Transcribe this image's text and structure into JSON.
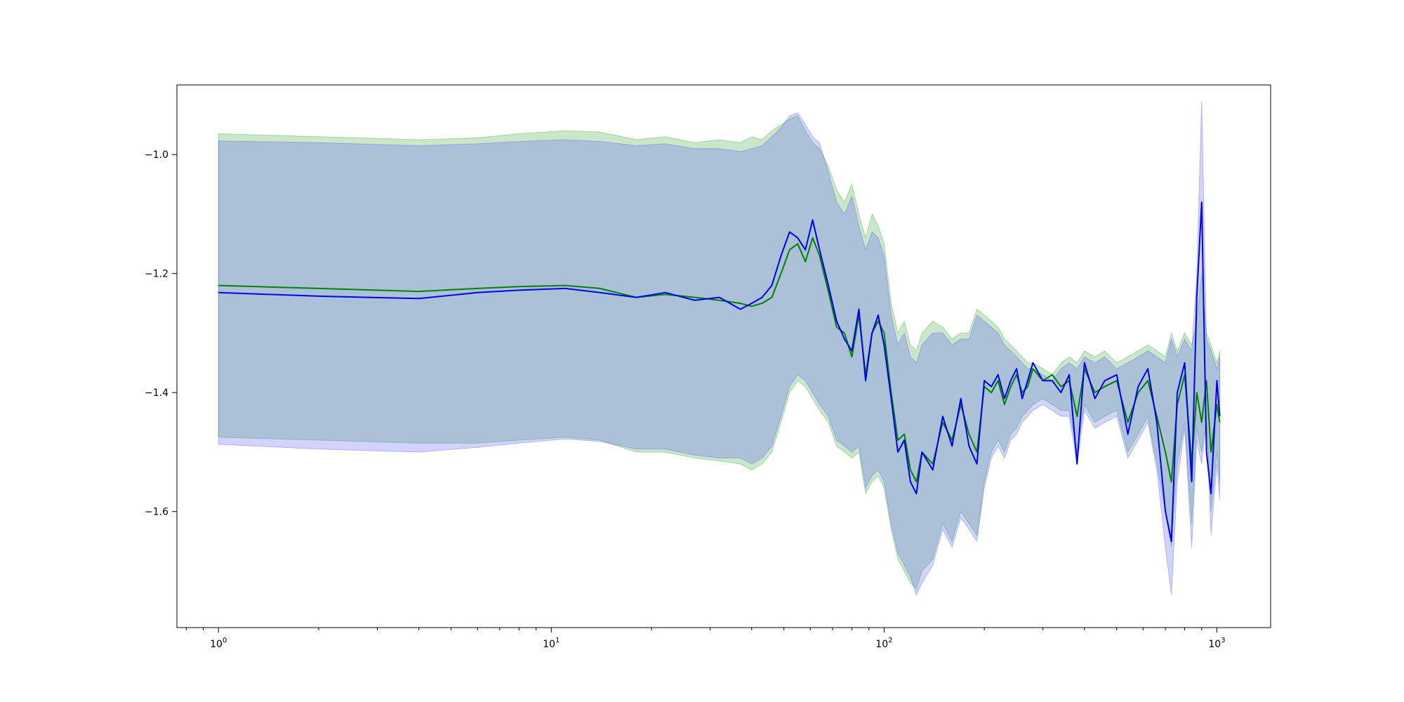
{
  "chart_data": {
    "type": "area",
    "x_scale": "log",
    "xlim": [
      0.75,
      1450
    ],
    "ylim": [
      -1.795,
      -0.883
    ],
    "grid": false,
    "legend": "none",
    "x_ticks": [
      {
        "value": 1,
        "label": "10",
        "exp": "0"
      },
      {
        "value": 10,
        "label": "10",
        "exp": "1"
      },
      {
        "value": 100,
        "label": "10",
        "exp": "2"
      },
      {
        "value": 1000,
        "label": "10",
        "exp": "3"
      }
    ],
    "y_ticks": [
      {
        "value": -1.0,
        "label": "−1.0"
      },
      {
        "value": -1.2,
        "label": "−1.2"
      },
      {
        "value": -1.4,
        "label": "−1.4"
      },
      {
        "value": -1.6,
        "label": "−1.6"
      }
    ],
    "series": [
      {
        "color": "#008000",
        "band_color": "#2ca02c",
        "x": [
          1,
          2,
          4,
          6,
          8,
          11,
          14,
          18,
          22,
          27,
          32,
          37,
          40,
          43,
          46,
          49,
          52,
          55,
          58,
          61,
          64,
          68,
          72,
          76,
          80,
          84,
          88,
          92,
          96,
          100,
          105,
          110,
          115,
          120,
          125,
          130,
          140,
          150,
          160,
          170,
          180,
          190,
          200,
          210,
          220,
          230,
          240,
          250,
          260,
          270,
          280,
          300,
          320,
          340,
          360,
          380,
          400,
          430,
          460,
          500,
          540,
          580,
          620,
          660,
          700,
          730,
          760,
          800,
          840,
          870,
          900,
          930,
          960,
          1000,
          1020
        ],
        "mean": [
          -1.22,
          -1.225,
          -1.23,
          -1.225,
          -1.222,
          -1.22,
          -1.225,
          -1.24,
          -1.235,
          -1.24,
          -1.245,
          -1.25,
          -1.255,
          -1.25,
          -1.24,
          -1.2,
          -1.16,
          -1.15,
          -1.18,
          -1.14,
          -1.17,
          -1.23,
          -1.29,
          -1.3,
          -1.34,
          -1.27,
          -1.37,
          -1.3,
          -1.28,
          -1.3,
          -1.4,
          -1.48,
          -1.47,
          -1.53,
          -1.55,
          -1.5,
          -1.52,
          -1.45,
          -1.48,
          -1.42,
          -1.47,
          -1.5,
          -1.39,
          -1.4,
          -1.38,
          -1.42,
          -1.39,
          -1.37,
          -1.4,
          -1.39,
          -1.36,
          -1.38,
          -1.37,
          -1.39,
          -1.38,
          -1.44,
          -1.36,
          -1.4,
          -1.39,
          -1.38,
          -1.45,
          -1.4,
          -1.38,
          -1.44,
          -1.5,
          -1.55,
          -1.42,
          -1.37,
          -1.52,
          -1.4,
          -1.45,
          -1.38,
          -1.5,
          -1.42,
          -1.45
        ],
        "upper": [
          -0.965,
          -0.97,
          -0.975,
          -0.972,
          -0.965,
          -0.96,
          -0.962,
          -0.975,
          -0.97,
          -0.98,
          -0.975,
          -0.98,
          -0.97,
          -0.975,
          -0.96,
          -0.95,
          -0.94,
          -0.935,
          -0.96,
          -0.98,
          -0.99,
          -1.02,
          -1.06,
          -1.08,
          -1.05,
          -1.1,
          -1.14,
          -1.1,
          -1.12,
          -1.15,
          -1.25,
          -1.3,
          -1.28,
          -1.32,
          -1.33,
          -1.3,
          -1.28,
          -1.29,
          -1.31,
          -1.3,
          -1.3,
          -1.26,
          -1.27,
          -1.28,
          -1.29,
          -1.31,
          -1.32,
          -1.33,
          -1.34,
          -1.35,
          -1.35,
          -1.36,
          -1.37,
          -1.35,
          -1.34,
          -1.35,
          -1.33,
          -1.34,
          -1.33,
          -1.35,
          -1.34,
          -1.33,
          -1.32,
          -1.33,
          -1.34,
          -1.3,
          -1.33,
          -1.3,
          -1.32,
          -1.28,
          -1.2,
          -1.3,
          -1.32,
          -1.35,
          -1.33
        ],
        "lower": [
          -1.475,
          -1.48,
          -1.485,
          -1.485,
          -1.48,
          -1.475,
          -1.48,
          -1.5,
          -1.5,
          -1.51,
          -1.515,
          -1.52,
          -1.53,
          -1.52,
          -1.5,
          -1.45,
          -1.4,
          -1.38,
          -1.39,
          -1.41,
          -1.43,
          -1.45,
          -1.49,
          -1.5,
          -1.51,
          -1.5,
          -1.57,
          -1.55,
          -1.54,
          -1.56,
          -1.63,
          -1.68,
          -1.7,
          -1.72,
          -1.73,
          -1.7,
          -1.68,
          -1.62,
          -1.65,
          -1.6,
          -1.62,
          -1.64,
          -1.55,
          -1.5,
          -1.48,
          -1.5,
          -1.47,
          -1.46,
          -1.44,
          -1.43,
          -1.42,
          -1.41,
          -1.42,
          -1.43,
          -1.43,
          -1.5,
          -1.42,
          -1.45,
          -1.44,
          -1.43,
          -1.5,
          -1.47,
          -1.44,
          -1.52,
          -1.6,
          -1.66,
          -1.52,
          -1.45,
          -1.62,
          -1.46,
          -1.5,
          -1.44,
          -1.6,
          -1.5,
          -1.55
        ]
      },
      {
        "color": "#0000ee",
        "band_color": "#5050ff",
        "x": [
          1,
          2,
          4,
          6,
          8,
          11,
          14,
          18,
          22,
          27,
          32,
          37,
          40,
          43,
          46,
          49,
          52,
          55,
          58,
          61,
          64,
          68,
          72,
          76,
          80,
          84,
          88,
          92,
          96,
          100,
          105,
          110,
          115,
          120,
          125,
          130,
          140,
          150,
          160,
          170,
          180,
          190,
          200,
          210,
          220,
          230,
          240,
          250,
          260,
          270,
          280,
          300,
          320,
          340,
          360,
          380,
          400,
          430,
          460,
          500,
          540,
          580,
          620,
          660,
          700,
          730,
          760,
          800,
          840,
          870,
          900,
          930,
          960,
          1000,
          1020
        ],
        "mean": [
          -1.232,
          -1.238,
          -1.242,
          -1.232,
          -1.228,
          -1.225,
          -1.232,
          -1.24,
          -1.232,
          -1.245,
          -1.24,
          -1.26,
          -1.25,
          -1.24,
          -1.22,
          -1.17,
          -1.13,
          -1.14,
          -1.16,
          -1.11,
          -1.16,
          -1.22,
          -1.28,
          -1.31,
          -1.33,
          -1.26,
          -1.38,
          -1.3,
          -1.27,
          -1.32,
          -1.41,
          -1.5,
          -1.48,
          -1.55,
          -1.57,
          -1.5,
          -1.53,
          -1.44,
          -1.49,
          -1.41,
          -1.49,
          -1.52,
          -1.38,
          -1.39,
          -1.37,
          -1.41,
          -1.38,
          -1.36,
          -1.41,
          -1.38,
          -1.35,
          -1.38,
          -1.38,
          -1.4,
          -1.37,
          -1.52,
          -1.35,
          -1.41,
          -1.38,
          -1.37,
          -1.47,
          -1.39,
          -1.36,
          -1.45,
          -1.6,
          -1.65,
          -1.4,
          -1.35,
          -1.55,
          -1.24,
          -1.08,
          -1.5,
          -1.57,
          -1.38,
          -1.44
        ],
        "upper": [
          -0.977,
          -0.98,
          -0.985,
          -0.982,
          -0.978,
          -0.975,
          -0.978,
          -0.985,
          -0.982,
          -0.99,
          -0.99,
          -0.995,
          -0.99,
          -0.985,
          -0.97,
          -0.955,
          -0.935,
          -0.93,
          -0.95,
          -0.97,
          -0.98,
          -1.03,
          -1.08,
          -1.1,
          -1.07,
          -1.12,
          -1.16,
          -1.13,
          -1.14,
          -1.17,
          -1.27,
          -1.32,
          -1.3,
          -1.34,
          -1.35,
          -1.32,
          -1.3,
          -1.3,
          -1.32,
          -1.31,
          -1.31,
          -1.27,
          -1.28,
          -1.29,
          -1.3,
          -1.32,
          -1.33,
          -1.34,
          -1.35,
          -1.36,
          -1.36,
          -1.37,
          -1.38,
          -1.36,
          -1.35,
          -1.36,
          -1.34,
          -1.35,
          -1.34,
          -1.36,
          -1.35,
          -1.34,
          -1.33,
          -1.34,
          -1.35,
          -1.31,
          -1.34,
          -1.31,
          -1.33,
          -1.2,
          -0.91,
          -1.31,
          -1.33,
          -1.36,
          -1.34
        ],
        "lower": [
          -1.487,
          -1.495,
          -1.5,
          -1.492,
          -1.485,
          -1.478,
          -1.482,
          -1.495,
          -1.495,
          -1.505,
          -1.51,
          -1.51,
          -1.52,
          -1.51,
          -1.49,
          -1.44,
          -1.39,
          -1.37,
          -1.38,
          -1.4,
          -1.42,
          -1.44,
          -1.48,
          -1.49,
          -1.5,
          -1.49,
          -1.56,
          -1.54,
          -1.53,
          -1.55,
          -1.62,
          -1.67,
          -1.69,
          -1.71,
          -1.74,
          -1.72,
          -1.69,
          -1.63,
          -1.66,
          -1.61,
          -1.63,
          -1.65,
          -1.56,
          -1.51,
          -1.49,
          -1.51,
          -1.48,
          -1.47,
          -1.45,
          -1.44,
          -1.43,
          -1.42,
          -1.43,
          -1.44,
          -1.44,
          -1.52,
          -1.43,
          -1.46,
          -1.45,
          -1.44,
          -1.51,
          -1.48,
          -1.45,
          -1.53,
          -1.66,
          -1.74,
          -1.55,
          -1.46,
          -1.66,
          -1.48,
          -1.52,
          -1.45,
          -1.64,
          -1.52,
          -1.58
        ]
      }
    ]
  }
}
